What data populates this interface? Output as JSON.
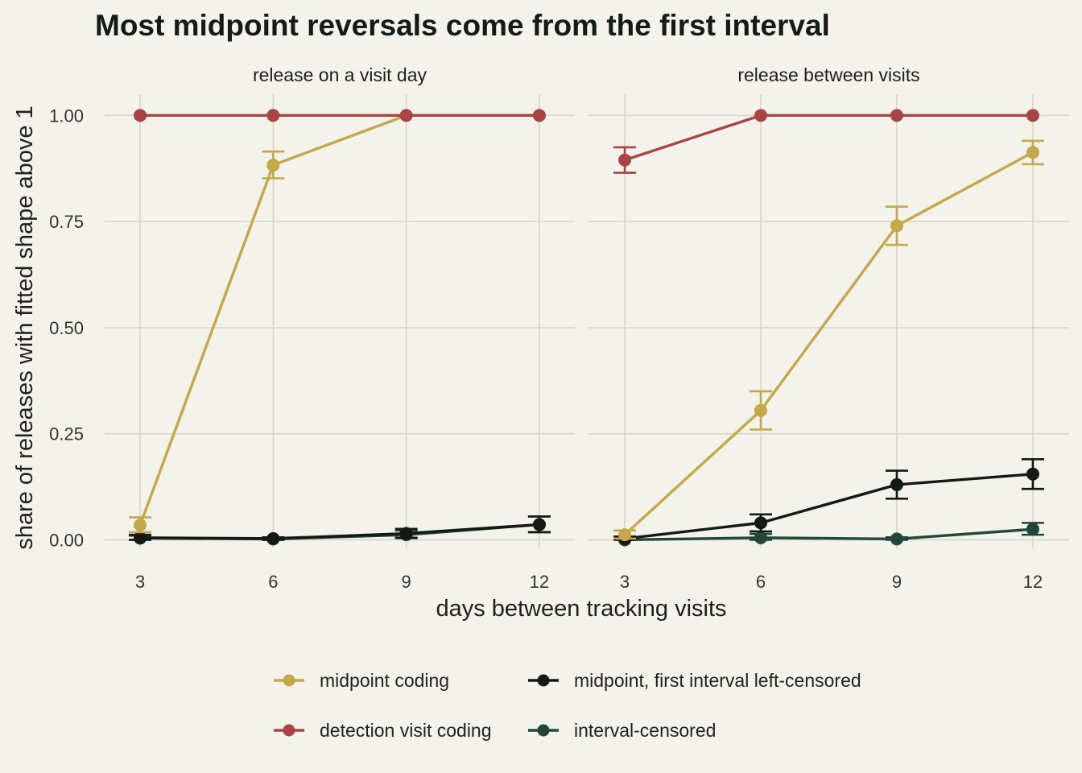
{
  "chart_data": {
    "type": "line",
    "title": "Most midpoint reversals come from the first interval",
    "xlabel": "days between tracking visits",
    "ylabel": "share of releases with fitted shape above 1",
    "x": [
      3,
      6,
      9,
      12
    ],
    "x_ticks": [
      "3",
      "6",
      "9",
      "12"
    ],
    "ylim": [
      -0.02,
      1.05
    ],
    "y_ticks": [
      "0.00",
      "0.25",
      "0.50",
      "0.75",
      "1.00"
    ],
    "y_tick_values": [
      0,
      0.25,
      0.5,
      0.75,
      1.0
    ],
    "grid": true,
    "legend_position": "bottom",
    "colors": {
      "midpoint": "#c4a84a",
      "detection": "#a94444",
      "first_interval": "#131a16",
      "interval_censored": "#22473a",
      "grid": "#d8d6c8",
      "background": "#f3f2eb"
    },
    "legend": [
      {
        "key": "midpoint",
        "label": "midpoint coding"
      },
      {
        "key": "first_interval",
        "label": "midpoint, first interval left-censored"
      },
      {
        "key": "detection",
        "label": "detection visit coding"
      },
      {
        "key": "interval_censored",
        "label": "interval-censored"
      }
    ],
    "panels": [
      {
        "strip": "release on a visit day",
        "series": [
          {
            "key": "midpoint",
            "values": [
              0.035,
              0.883,
              1.0,
              1.0
            ],
            "lower": [
              0.018,
              0.852,
              1.0,
              1.0
            ],
            "upper": [
              0.053,
              0.915,
              1.0,
              1.0
            ]
          },
          {
            "key": "detection",
            "values": [
              1.0,
              1.0,
              1.0,
              1.0
            ],
            "lower": [
              1.0,
              1.0,
              1.0,
              1.0
            ],
            "upper": [
              1.0,
              1.0,
              1.0,
              1.0
            ]
          },
          {
            "key": "first_interval",
            "values": [
              0.005,
              0.003,
              0.015,
              0.036
            ],
            "lower": [
              0.0,
              0.0,
              0.005,
              0.018
            ],
            "upper": [
              0.012,
              0.006,
              0.026,
              0.055
            ]
          },
          {
            "key": "interval_censored",
            "values": [
              0.004,
              0.002,
              0.012,
              0.036
            ],
            "lower": [
              0.0,
              0.0,
              0.004,
              0.018
            ],
            "upper": [
              0.01,
              0.005,
              0.022,
              0.055
            ]
          }
        ]
      },
      {
        "strip": "release between visits",
        "series": [
          {
            "key": "midpoint",
            "values": [
              0.012,
              0.305,
              0.74,
              0.913
            ],
            "lower": [
              0.003,
              0.26,
              0.695,
              0.885
            ],
            "upper": [
              0.022,
              0.35,
              0.785,
              0.94
            ]
          },
          {
            "key": "detection",
            "values": [
              0.895,
              1.0,
              1.0,
              1.0
            ],
            "lower": [
              0.865,
              1.0,
              1.0,
              1.0
            ],
            "upper": [
              0.925,
              1.0,
              1.0,
              1.0
            ]
          },
          {
            "key": "first_interval",
            "values": [
              0.003,
              0.04,
              0.13,
              0.155
            ],
            "lower": [
              0.0,
              0.02,
              0.097,
              0.12
            ],
            "upper": [
              0.008,
              0.06,
              0.163,
              0.19
            ]
          },
          {
            "key": "interval_censored",
            "values": [
              0.0,
              0.005,
              0.002,
              0.025
            ],
            "lower": [
              0.0,
              0.0,
              0.0,
              0.012
            ],
            "upper": [
              0.002,
              0.014,
              0.006,
              0.04
            ]
          }
        ]
      }
    ]
  }
}
